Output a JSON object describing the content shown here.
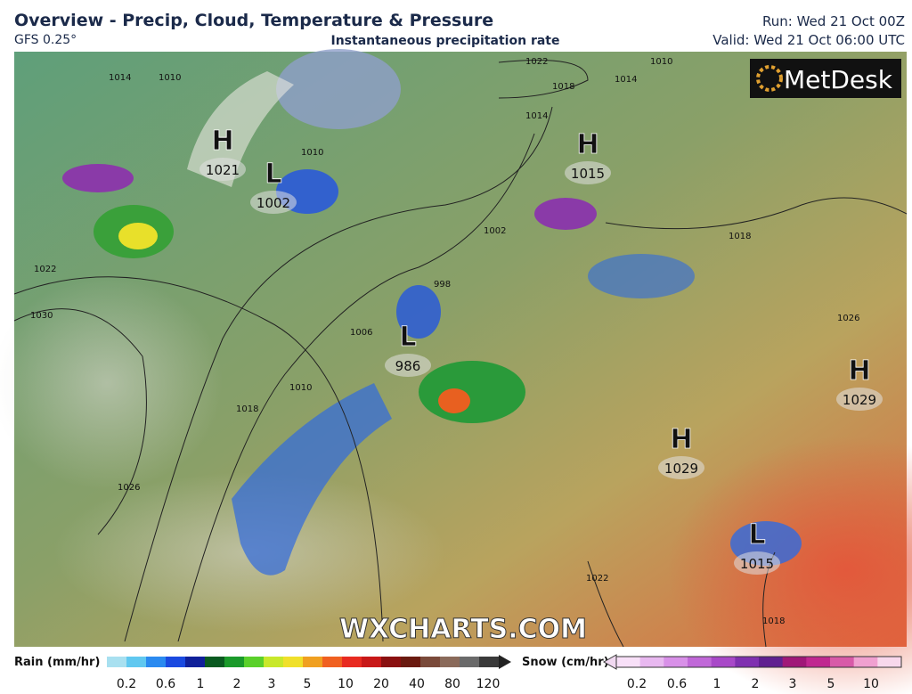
{
  "header": {
    "title": "Overview - Precip, Cloud, Temperature & Pressure",
    "model": "GFS 0.25°",
    "subtitle": "Instantaneous precipitation rate",
    "run": "Run: Wed 21 Oct 00Z",
    "valid": "Valid: Wed 21 Oct 06:00 UTC"
  },
  "brand": "MetDesk",
  "watermark": "WXCHARTS.COM",
  "pressure_centers": [
    {
      "kind": "H",
      "value": "1021"
    },
    {
      "kind": "L",
      "value": "1002"
    },
    {
      "kind": "H",
      "value": "1015"
    },
    {
      "kind": "L",
      "value": "986"
    },
    {
      "kind": "H",
      "value": "1029"
    },
    {
      "kind": "H",
      "value": "1029"
    },
    {
      "kind": "L",
      "value": "1015"
    }
  ],
  "isobar_labels": [
    "1022",
    "1018",
    "1014",
    "1010",
    "1014",
    "1010",
    "1002",
    "998",
    "1006",
    "1010",
    "1018",
    "1026",
    "1030",
    "1022",
    "1018",
    "1026",
    "1014",
    "1022",
    "1018",
    "1010"
  ],
  "legend": {
    "rain": {
      "label": "Rain (mm/hr)",
      "ticks": [
        "0.2",
        "0.6",
        "1",
        "2",
        "3",
        "5",
        "10",
        "20",
        "40",
        "80",
        "120"
      ]
    },
    "snow": {
      "label": "Snow (cm/hr)",
      "ticks": [
        "0.2",
        "0.6",
        "1",
        "2",
        "3",
        "5",
        "10"
      ]
    }
  }
}
